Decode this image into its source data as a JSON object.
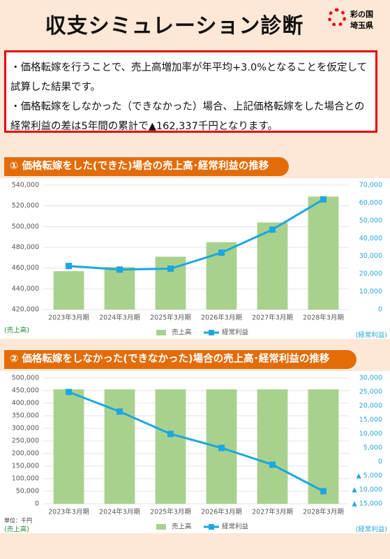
{
  "header": {
    "title": "収支シミュレーション診断",
    "logo_line1": "彩の国",
    "logo_line2": "埼玉県"
  },
  "notice": {
    "items": [
      "・価格転嫁を行うことで、売上高増加率が年平均+3.0%となることを仮定して試算した結果です。",
      "・価格転嫁をしなかった（できなかった）場合、上記価格転嫁をした場合との経常利益の差は5年間の累計で▲162,337千円となります。"
    ]
  },
  "chart_data": [
    {
      "type": "bar-line",
      "title": "① 価格転嫁をした(できた)場合の売上高･経常利益の推移",
      "categories": [
        "2023年3月期",
        "2024年3月期",
        "2025年3月期",
        "2026年3月期",
        "2027年3月期",
        "2028年3月期"
      ],
      "series": [
        {
          "name": "売上高",
          "color": "#a9d18e",
          "values": [
            457000,
            461000,
            471000,
            485000,
            504000,
            529000
          ]
        },
        {
          "name": "経常利益",
          "color": "#1ca7e0",
          "axis": "y2",
          "values": [
            24500,
            22500,
            23000,
            32000,
            45000,
            62000
          ]
        }
      ],
      "ylim": [
        420000,
        540000
      ],
      "yticks": [
        {
          "value": 420000,
          "label": "420,000"
        },
        {
          "value": 440000,
          "label": "440,000"
        },
        {
          "value": 460000,
          "label": "460,000"
        },
        {
          "value": 480000,
          "label": "480,000"
        },
        {
          "value": 500000,
          "label": "500,000"
        },
        {
          "value": 520000,
          "label": "520,000"
        },
        {
          "value": 540000,
          "label": "540,000"
        }
      ],
      "y2lim": [
        0,
        70000
      ],
      "y2ticks": [
        0,
        {
          "value": 10000,
          "label": "10,000"
        },
        {
          "value": 20000,
          "label": "20,000"
        },
        {
          "value": 30000,
          "label": "30,000"
        },
        {
          "value": 40000,
          "label": "40,000"
        },
        {
          "value": 50000,
          "label": "50,000"
        },
        {
          "value": 60000,
          "label": "60,000"
        },
        {
          "value": 70000,
          "label": "70,000"
        }
      ],
      "y_label": "(売上高)",
      "y2_label": "(経常利益)",
      "grid": true
    },
    {
      "type": "bar-line",
      "title": "② 価格転嫁をしなかった(できなかった)場合の売上高･経常利益の推移",
      "categories": [
        "2023年3月期",
        "2024年3月期",
        "2025年3月期",
        "2026年3月期",
        "2027年3月期",
        "2028年3月期"
      ],
      "series": [
        {
          "name": "売上高",
          "color": "#a9d18e",
          "values": [
            455000,
            455000,
            455000,
            455000,
            455000,
            455000
          ]
        },
        {
          "name": "経常利益",
          "color": "#1ca7e0",
          "axis": "y2",
          "values": [
            25000,
            18000,
            10000,
            5000,
            -1000,
            -10500
          ]
        }
      ],
      "ylim": [
        0,
        500000
      ],
      "yticks": [
        0,
        {
          "value": 50000,
          "label": "50,000"
        },
        {
          "value": 100000,
          "label": "100,000"
        },
        {
          "value": 150000,
          "label": "150,000"
        },
        {
          "value": 200000,
          "label": "200,000"
        },
        {
          "value": 250000,
          "label": "250,000"
        },
        {
          "value": 300000,
          "label": "300,000"
        },
        {
          "value": 350000,
          "label": "350,000"
        },
        {
          "value": 400000,
          "label": "400,000"
        },
        {
          "value": 450000,
          "label": "450,000"
        },
        {
          "value": 500000,
          "label": "500,000"
        }
      ],
      "y2lim": [
        -15000,
        30000
      ],
      "y2ticks": [
        {
          "value": -15000,
          "label": "▲ 15,000"
        },
        {
          "value": -10000,
          "label": "▲ 10,000"
        },
        {
          "value": -5000,
          "label": "▲ 5,000"
        },
        0,
        {
          "value": 5000,
          "label": "5,000"
        },
        {
          "value": 10000,
          "label": "10,000"
        },
        {
          "value": 15000,
          "label": "15,000"
        },
        {
          "value": 20000,
          "label": "20,000"
        },
        {
          "value": 25000,
          "label": "25,000"
        },
        {
          "value": 30000,
          "label": "30,000"
        }
      ],
      "unit": "単位：千円",
      "y_label": "(売上高)",
      "y2_label": "(経常利益)",
      "grid": true
    }
  ]
}
